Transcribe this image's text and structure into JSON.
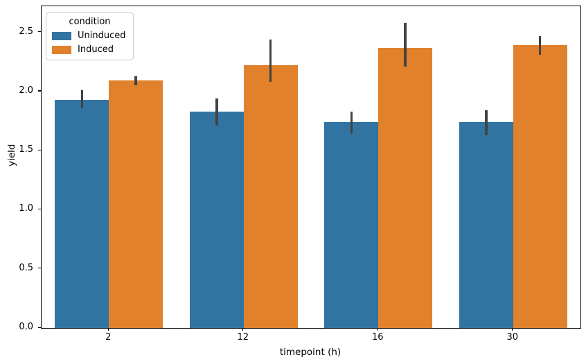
{
  "chart_data": {
    "type": "bar",
    "title": "",
    "xlabel": "timepoint (h)",
    "ylabel": "yield",
    "categories": [
      "2",
      "12",
      "16",
      "30"
    ],
    "series": [
      {
        "name": "Uninduced",
        "color": "#3274a1",
        "values": [
          1.93,
          1.83,
          1.74,
          1.74
        ],
        "ci_low": [
          1.86,
          1.71,
          1.64,
          1.63
        ],
        "ci_high": [
          2.01,
          1.94,
          1.83,
          1.84
        ]
      },
      {
        "name": "Induced",
        "color": "#e1812c",
        "values": [
          2.09,
          2.22,
          2.37,
          2.39
        ],
        "ci_low": [
          2.05,
          2.08,
          2.21,
          2.31
        ],
        "ci_high": [
          2.13,
          2.44,
          2.58,
          2.47
        ]
      }
    ],
    "ylim": [
      0,
      2.72
    ],
    "yticks": [
      "0.0",
      "0.5",
      "1.0",
      "1.5",
      "2.0",
      "2.5"
    ],
    "grid": false,
    "legend": {
      "title": "condition",
      "position": "upper left"
    },
    "errorbar_color": "#424242",
    "bar_group_width_fraction": 0.8
  }
}
